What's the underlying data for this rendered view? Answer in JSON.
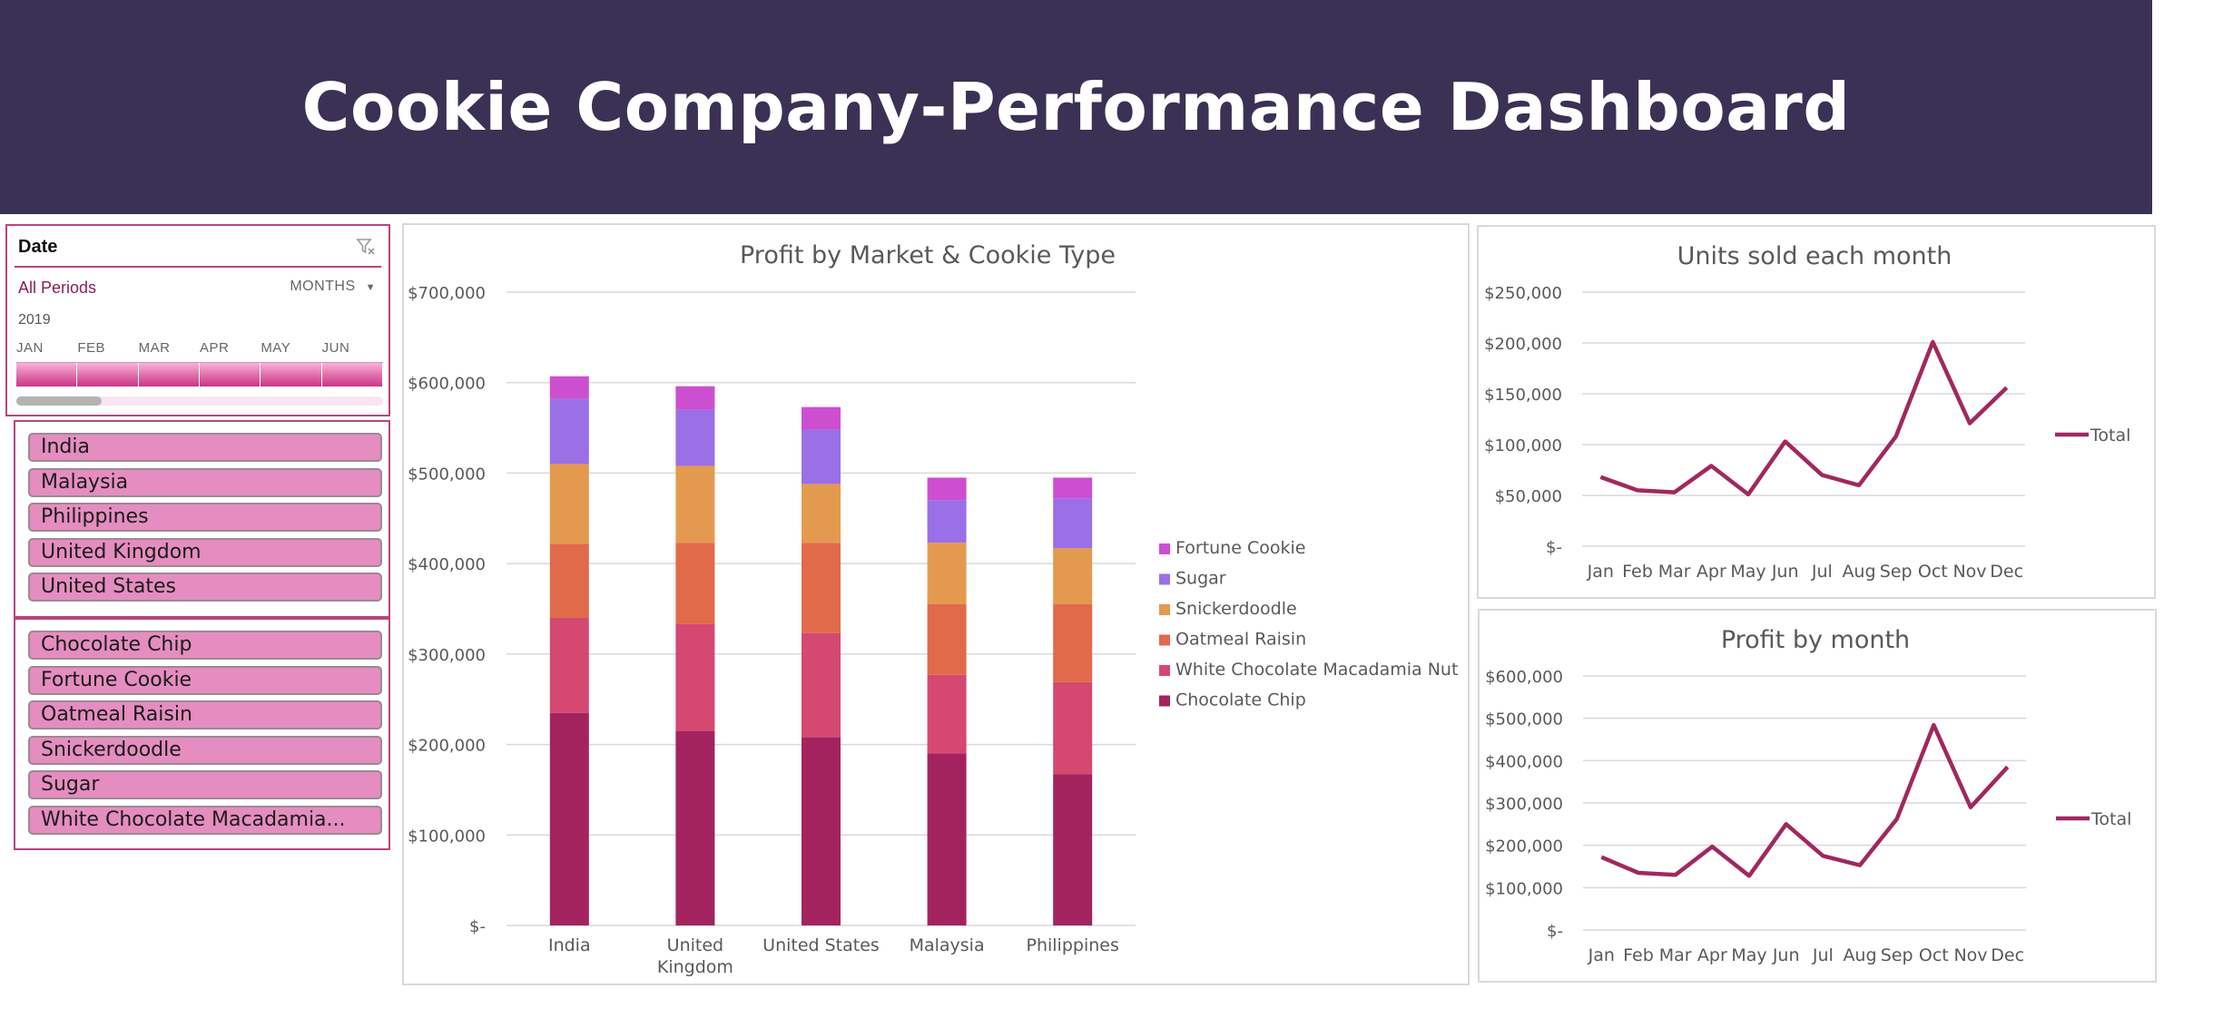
{
  "header": {
    "title": "Cookie Company-Performance Dashboard"
  },
  "timeline": {
    "title": "Date",
    "periods_label": "All Periods",
    "level_label": "MONTHS",
    "year": "2019",
    "months": [
      "JAN",
      "FEB",
      "MAR",
      "APR",
      "MAY",
      "JUN"
    ],
    "filter_icon": "clear-filter-icon",
    "dropdown_icon": "caret-down-icon"
  },
  "market_slicer": {
    "items": [
      "India",
      "Malaysia",
      "Philippines",
      "United Kingdom",
      "United States"
    ]
  },
  "product_slicer": {
    "items": [
      "Chocolate Chip",
      "Fortune Cookie",
      "Oatmeal Raisin",
      "Snickerdoodle",
      "Sugar",
      "White Chocolate Macadamia..."
    ]
  },
  "colors": {
    "header_bg": "#3a3155",
    "accent": "#b8457a",
    "slicer_item": "#e58dc0",
    "line": "#a0285f"
  },
  "chart_data": [
    {
      "type": "bar",
      "stacked": true,
      "title": "Profit by Market & Cookie Type",
      "categories": [
        "India",
        "United Kingdom",
        "United States",
        "Malaysia",
        "Philippines"
      ],
      "series": [
        {
          "name": "Chocolate Chip",
          "color": "#a3235e",
          "values": [
            235000,
            215000,
            208000,
            190000,
            167000
          ]
        },
        {
          "name": "White Chocolate Macadamia Nut",
          "color": "#d44872",
          "values": [
            105000,
            118000,
            115000,
            87000,
            102000
          ]
        },
        {
          "name": "Oatmeal Raisin",
          "color": "#e06a49",
          "values": [
            82000,
            90000,
            100000,
            78000,
            86000
          ]
        },
        {
          "name": "Snickerdoodle",
          "color": "#e39a4e",
          "values": [
            88000,
            85000,
            65000,
            68000,
            62000
          ]
        },
        {
          "name": "Sugar",
          "color": "#9b6fe6",
          "values": [
            72000,
            62000,
            60000,
            47000,
            55000
          ]
        },
        {
          "name": "Fortune Cookie",
          "color": "#cc4fd0",
          "values": [
            25000,
            26000,
            25000,
            25000,
            23000
          ]
        }
      ],
      "yticks": [
        "$-",
        "$100,000",
        "$200,000",
        "$300,000",
        "$400,000",
        "$500,000",
        "$600,000",
        "$700,000"
      ],
      "ylim": [
        0,
        700000
      ],
      "legend": "right",
      "grid": true
    },
    {
      "type": "line",
      "title": "Units sold each month",
      "x": [
        "Jan",
        "Feb",
        "Mar",
        "Apr",
        "May",
        "Jun",
        "Jul",
        "Aug",
        "Sep",
        "Oct",
        "Nov",
        "Dec"
      ],
      "series": [
        {
          "name": "Total",
          "color": "#a0285f",
          "values": [
            68000,
            55000,
            53000,
            79000,
            51000,
            103000,
            70000,
            60000,
            108000,
            201000,
            121000,
            156000
          ]
        }
      ],
      "yticks": [
        "$-",
        "$50,000",
        "$100,000",
        "$150,000",
        "$200,000",
        "$250,000"
      ],
      "ylim": [
        0,
        250000
      ],
      "legend": "right",
      "grid": true
    },
    {
      "type": "line",
      "title": "Profit by month",
      "x": [
        "Jan",
        "Feb",
        "Mar",
        "Apr",
        "May",
        "Jun",
        "Jul",
        "Aug",
        "Sep",
        "Oct",
        "Nov",
        "Dec"
      ],
      "series": [
        {
          "name": "Total",
          "color": "#a0285f",
          "values": [
            172000,
            135000,
            130000,
            197000,
            128000,
            250000,
            175000,
            153000,
            262000,
            484000,
            290000,
            385000
          ]
        }
      ],
      "yticks": [
        "$-",
        "$100,000",
        "$200,000",
        "$300,000",
        "$400,000",
        "$500,000",
        "$600,000"
      ],
      "ylim": [
        0,
        600000
      ],
      "legend": "right",
      "grid": true
    }
  ]
}
